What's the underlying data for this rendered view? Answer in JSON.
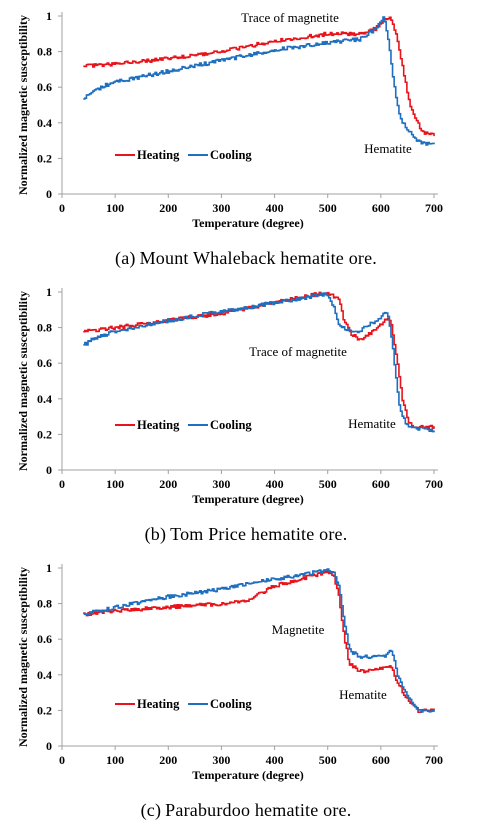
{
  "colors": {
    "heating": "#e8141b",
    "cooling": "#1e6fc0",
    "axis": "#a0a0a0"
  },
  "charts": [
    {
      "caption_letter": "(a)",
      "caption_text": "Mount Whaleback hematite ore.",
      "chart_data": {
        "type": "line",
        "xlabel": "Temperature (degree)",
        "ylabel": "Normalized magnetic susceptibility",
        "xlim": [
          0,
          700
        ],
        "ylim": [
          0,
          1
        ],
        "x_ticks": [
          0,
          100,
          200,
          300,
          400,
          500,
          600,
          700
        ],
        "y_ticks": [
          0,
          0.2,
          0.4,
          0.6,
          0.8,
          1
        ],
        "legend": "bottom-left",
        "annotations": [
          "Trace of magnetite",
          "Hematite"
        ],
        "series": [
          {
            "name": "Heating",
            "x": [
              40,
              100,
              200,
              300,
              400,
              500,
              560,
              590,
              605,
              615,
              620,
              630,
              640,
              650,
              660,
              670,
              680,
              700
            ],
            "y": [
              0.72,
              0.73,
              0.76,
              0.8,
              0.86,
              0.9,
              0.9,
              0.93,
              0.97,
              1.0,
              0.98,
              0.88,
              0.72,
              0.55,
              0.45,
              0.39,
              0.34,
              0.33
            ]
          },
          {
            "name": "Cooling",
            "x": [
              40,
              60,
              80,
              100,
              200,
              300,
              400,
              500,
              560,
              590,
              600,
              605,
              612,
              620,
              630,
              640,
              660,
              680,
              700
            ],
            "y": [
              0.54,
              0.58,
              0.61,
              0.63,
              0.69,
              0.75,
              0.81,
              0.85,
              0.87,
              0.93,
              0.97,
              0.99,
              0.9,
              0.7,
              0.5,
              0.4,
              0.32,
              0.28,
              0.28
            ]
          }
        ]
      }
    },
    {
      "caption_letter": "(b)",
      "caption_text": "Tom Price hematite ore.",
      "chart_data": {
        "type": "line",
        "xlabel": "Temperature (degree)",
        "ylabel": "Normalized magnetic susceptibility",
        "xlim": [
          0,
          700
        ],
        "ylim": [
          0,
          1
        ],
        "x_ticks": [
          0,
          100,
          200,
          300,
          400,
          500,
          600,
          700
        ],
        "y_ticks": [
          0,
          0.2,
          0.4,
          0.6,
          0.8,
          1
        ],
        "legend": "bottom-left",
        "annotations": [
          "Trace of magnetite",
          "Hematite"
        ],
        "series": [
          {
            "name": "Heating",
            "x": [
              40,
              100,
              200,
              300,
              400,
              480,
              500,
              520,
              530,
              545,
              560,
              580,
              600,
              615,
              620,
              630,
              640,
              650,
              660,
              700
            ],
            "y": [
              0.78,
              0.8,
              0.84,
              0.88,
              0.94,
              0.99,
              0.99,
              0.96,
              0.84,
              0.76,
              0.73,
              0.77,
              0.82,
              0.86,
              0.8,
              0.62,
              0.4,
              0.28,
              0.24,
              0.24
            ]
          },
          {
            "name": "Cooling",
            "x": [
              40,
              60,
              100,
              200,
              300,
              400,
              480,
              500,
              510,
              520,
              540,
              560,
              580,
              600,
              610,
              615,
              625,
              635,
              650,
              700
            ],
            "y": [
              0.7,
              0.74,
              0.78,
              0.84,
              0.89,
              0.94,
              0.98,
              0.99,
              0.92,
              0.82,
              0.78,
              0.78,
              0.82,
              0.86,
              0.89,
              0.84,
              0.6,
              0.34,
              0.24,
              0.22
            ]
          }
        ]
      }
    },
    {
      "caption_letter": "(c)",
      "caption_text": "Paraburdoo hematite ore.",
      "chart_data": {
        "type": "line",
        "xlabel": "Temperature (degree)",
        "ylabel": "Normalized magnetic susceptibility",
        "xlim": [
          0,
          700
        ],
        "ylim": [
          0,
          1
        ],
        "x_ticks": [
          0,
          100,
          200,
          300,
          400,
          500,
          600,
          700
        ],
        "y_ticks": [
          0,
          0.2,
          0.4,
          0.6,
          0.8,
          1
        ],
        "legend": "bottom-left",
        "annotations": [
          "Magnetite",
          "Hematite"
        ],
        "series": [
          {
            "name": "Heating",
            "x": [
              40,
              100,
              200,
              300,
              350,
              400,
              450,
              500,
              510,
              520,
              530,
              540,
              560,
              580,
              600,
              620,
              630,
              650,
              670,
              700
            ],
            "y": [
              0.74,
              0.76,
              0.78,
              0.8,
              0.82,
              0.9,
              0.94,
              0.98,
              0.96,
              0.85,
              0.62,
              0.46,
              0.42,
              0.42,
              0.44,
              0.44,
              0.36,
              0.26,
              0.2,
              0.2
            ]
          },
          {
            "name": "Cooling",
            "x": [
              40,
              100,
              200,
              300,
              400,
              450,
              500,
              510,
              520,
              530,
              540,
              560,
              580,
              600,
              610,
              620,
              630,
              650,
              670,
              700
            ],
            "y": [
              0.74,
              0.78,
              0.84,
              0.88,
              0.94,
              0.96,
              0.99,
              0.98,
              0.9,
              0.7,
              0.54,
              0.5,
              0.5,
              0.5,
              0.51,
              0.54,
              0.4,
              0.28,
              0.2,
              0.19
            ]
          }
        ]
      }
    }
  ]
}
